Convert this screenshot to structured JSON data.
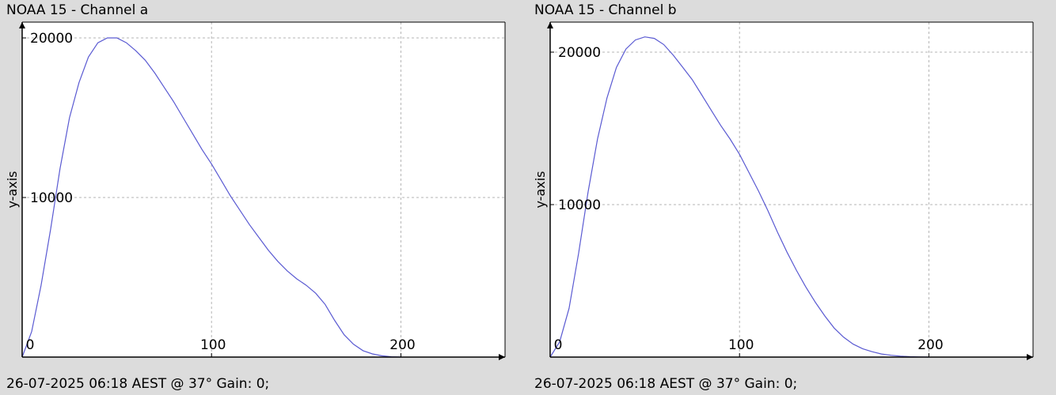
{
  "chart_data": [
    {
      "type": "line",
      "title": "NOAA 15 - Channel a",
      "footer": "26-07-2025 06:18 AEST @ 37° Gain: 0;",
      "xlabel": "",
      "ylabel": "y-axis",
      "xlim": [
        0,
        255
      ],
      "ylim": [
        0,
        20000
      ],
      "xticks": [
        0,
        100,
        200
      ],
      "yticks": [
        10000,
        20000
      ],
      "grid": true,
      "line_color": "#5a5ad2",
      "series": [
        {
          "x": [
            0,
            5,
            10,
            15,
            20,
            25,
            30,
            35,
            40,
            45,
            50,
            55,
            60,
            65,
            70,
            75,
            80,
            85,
            90,
            95,
            100,
            105,
            110,
            115,
            120,
            125,
            130,
            135,
            140,
            145,
            150,
            155,
            160,
            165,
            170,
            175,
            180,
            185,
            190,
            195,
            200
          ],
          "values": [
            0,
            1600,
            4500,
            8000,
            11800,
            15000,
            17200,
            18800,
            19700,
            20000,
            20000,
            19700,
            19200,
            18600,
            17800,
            16900,
            16000,
            15000,
            14000,
            13000,
            12100,
            11100,
            10100,
            9200,
            8300,
            7500,
            6700,
            6000,
            5400,
            4900,
            4500,
            4000,
            3300,
            2300,
            1400,
            800,
            400,
            200,
            80,
            20,
            0
          ]
        }
      ]
    },
    {
      "type": "line",
      "title": "NOAA 15 - Channel b",
      "footer": "26-07-2025 06:18 AEST @ 37° Gain: 0;",
      "xlabel": "",
      "ylabel": "y-axis",
      "xlim": [
        0,
        255
      ],
      "ylim": [
        0,
        20000
      ],
      "xticks": [
        0,
        100,
        200
      ],
      "yticks": [
        10000,
        20000
      ],
      "grid": true,
      "line_color": "#5a5ad2",
      "series": [
        {
          "x": [
            0,
            5,
            10,
            15,
            20,
            25,
            30,
            35,
            40,
            45,
            50,
            55,
            60,
            65,
            70,
            75,
            80,
            85,
            90,
            95,
            100,
            105,
            110,
            115,
            120,
            125,
            130,
            135,
            140,
            145,
            150,
            155,
            160,
            165,
            170,
            175,
            180,
            185,
            190,
            195,
            200
          ],
          "values": [
            0,
            1000,
            3200,
            6800,
            10800,
            14300,
            17000,
            19000,
            20200,
            20800,
            21000,
            20900,
            20500,
            19800,
            19000,
            18200,
            17200,
            16200,
            15200,
            14300,
            13300,
            12100,
            10900,
            9600,
            8200,
            6900,
            5700,
            4600,
            3600,
            2700,
            1900,
            1300,
            850,
            550,
            350,
            200,
            120,
            60,
            25,
            10,
            0
          ]
        }
      ]
    }
  ]
}
